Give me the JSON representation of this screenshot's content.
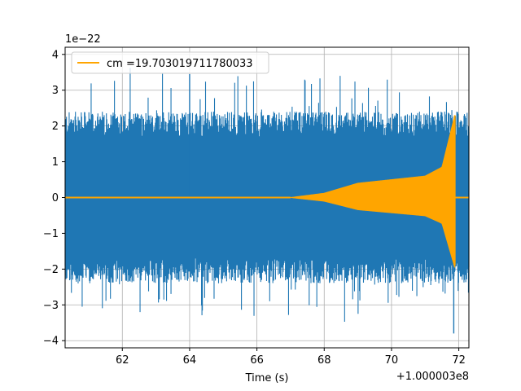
{
  "chart_data": {
    "type": "line",
    "xlabel": "Time (s)",
    "ylabel": "",
    "x_offset_label": "+1.000003e8",
    "y_scale_label": "1e−22",
    "xlim": [
      60.3,
      72.3
    ],
    "ylim": [
      -4.2,
      4.2
    ],
    "x_ticks": [
      62,
      64,
      66,
      68,
      70,
      72
    ],
    "y_ticks": [
      -4,
      -3,
      -2,
      -1,
      0,
      1,
      2,
      3,
      4
    ],
    "x_tick_labels": [
      "62",
      "64",
      "66",
      "68",
      "70",
      "72"
    ],
    "y_tick_labels": [
      "−4",
      "−3",
      "−2",
      "−1",
      "0",
      "1",
      "2",
      "3",
      "4"
    ],
    "grid": true,
    "legend_position": "top-left",
    "series": [
      {
        "name": "",
        "color": "#1f77b4",
        "description_values": {
          "typical_envelope": [
            -2.0,
            2.0
          ],
          "x_start": 60.3,
          "x_end": 72.3,
          "max_peak": 3.45,
          "min_peak": -3.8
        }
      },
      {
        "name": "cm =19.703019711780033",
        "color": "#ffa500",
        "chirp": {
          "x_start": 67.0,
          "merger_time": 71.88,
          "end_value": 0.0,
          "amplitude_at_x": [
            [
              67.0,
              0.0
            ],
            [
              68.0,
              0.12
            ],
            [
              69.0,
              0.4
            ],
            [
              70.0,
              0.5
            ],
            [
              71.0,
              0.6
            ],
            [
              71.5,
              0.85
            ],
            [
              71.88,
              2.3
            ]
          ]
        }
      }
    ]
  }
}
